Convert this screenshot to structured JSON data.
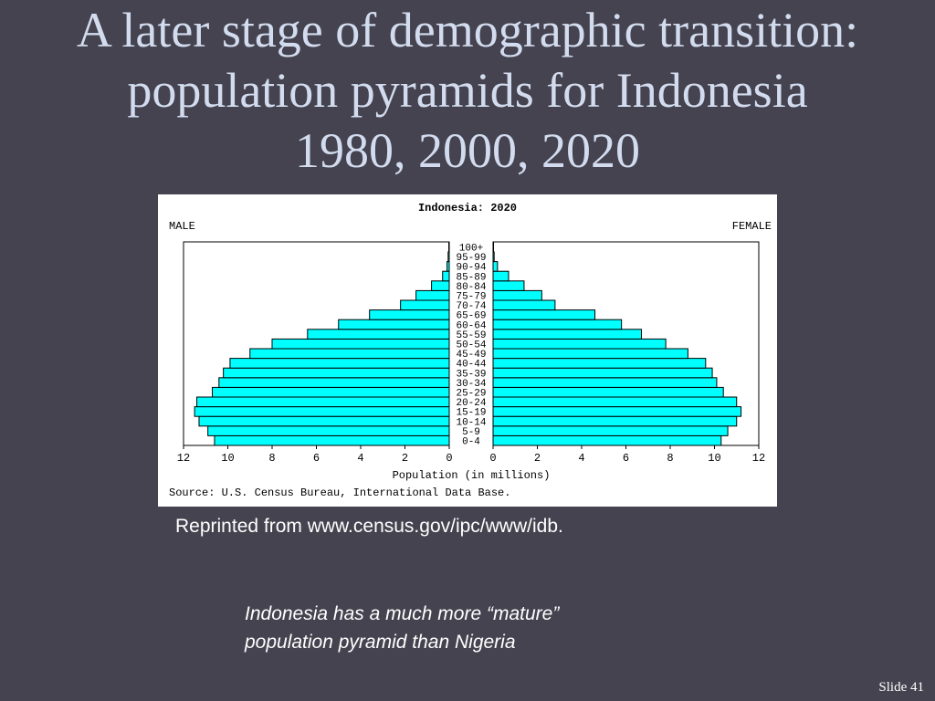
{
  "slide": {
    "title_lines": [
      "A later stage of demographic transition:",
      "population pyramids for Indonesia",
      "1980, 2000, 2020"
    ],
    "credit": "Reprinted from www.census.gov/ipc/www/idb.",
    "note_lines": [
      "Indonesia has a much more “mature”",
      "population pyramid than Nigeria"
    ],
    "slide_number": "Slide 41"
  },
  "colors": {
    "background": "#44434f",
    "title": "#d3dcef",
    "bar_fill": "#00ffff",
    "bar_stroke": "#000000"
  },
  "chart_data": {
    "type": "bar",
    "orientation": "horizontal-pyramid",
    "title": "Indonesia: 2020",
    "left_label": "MALE",
    "right_label": "FEMALE",
    "xlabel": "Population (in millions)",
    "source": "Source: U.S. Census Bureau, International Data Base.",
    "xlim": [
      0,
      12
    ],
    "x_ticks": [
      "12",
      "10",
      "8",
      "6",
      "4",
      "2",
      "0",
      "0",
      "2",
      "4",
      "6",
      "8",
      "10",
      "12"
    ],
    "categories": [
      "0-4",
      "5-9",
      "10-14",
      "15-19",
      "20-24",
      "25-29",
      "30-34",
      "35-39",
      "40-44",
      "45-49",
      "50-54",
      "55-59",
      "60-64",
      "65-69",
      "70-74",
      "75-79",
      "80-84",
      "85-89",
      "90-94",
      "95-99",
      "100+"
    ],
    "series": [
      {
        "name": "MALE",
        "values": [
          10.6,
          10.9,
          11.3,
          11.5,
          11.4,
          10.7,
          10.4,
          10.2,
          9.9,
          9.0,
          8.0,
          6.4,
          5.0,
          3.6,
          2.2,
          1.5,
          0.8,
          0.3,
          0.1,
          0.05,
          0.02
        ]
      },
      {
        "name": "FEMALE",
        "values": [
          10.3,
          10.6,
          11.0,
          11.2,
          11.0,
          10.4,
          10.1,
          9.9,
          9.6,
          8.8,
          7.8,
          6.7,
          5.8,
          4.6,
          2.8,
          2.2,
          1.4,
          0.7,
          0.2,
          0.05,
          0.02
        ]
      }
    ]
  }
}
